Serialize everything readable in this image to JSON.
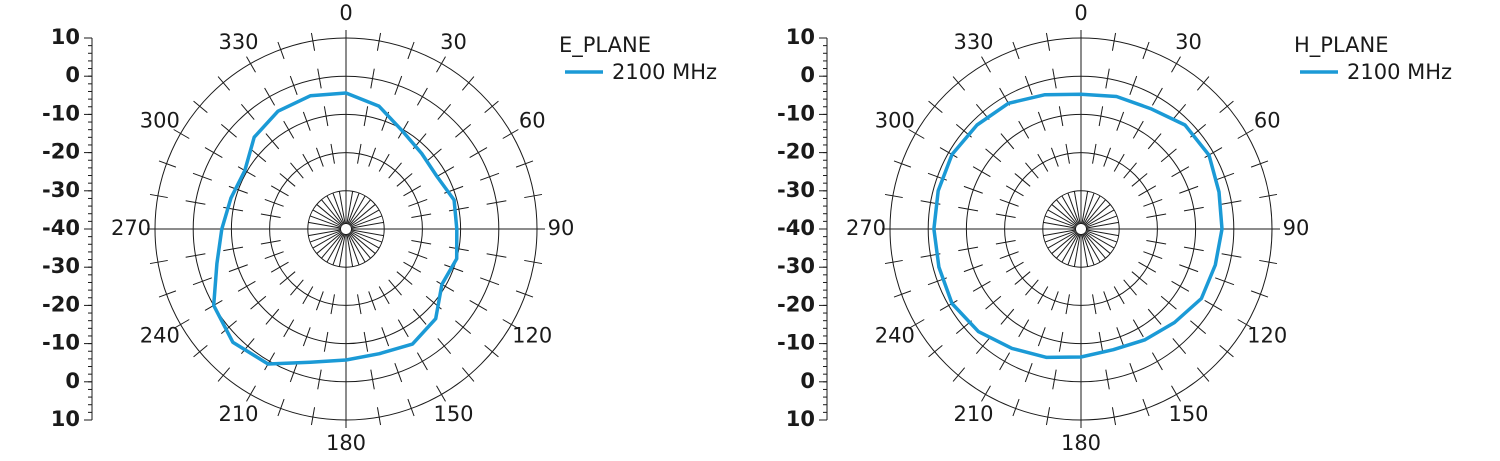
{
  "chart_data": [
    {
      "type": "polar",
      "legend_title": "E_PLANE",
      "theta": [
        0,
        15,
        30,
        45,
        60,
        75,
        90,
        105,
        120,
        135,
        150,
        165,
        180,
        195,
        210,
        225,
        240,
        255,
        270,
        285,
        300,
        315,
        330,
        345
      ],
      "thetaticks": [
        0,
        30,
        60,
        90,
        120,
        150,
        180,
        210,
        240,
        270,
        300,
        330
      ],
      "rlim": [
        -40,
        10
      ],
      "rticks": [
        -40,
        -30,
        -20,
        -10,
        0,
        10
      ],
      "series": [
        {
          "name": "2100 MHz",
          "color": "#1b9ad6",
          "values": [
            -4.4,
            -6.7,
            -10.4,
            -12,
            -12.5,
            -10.7,
            -11,
            -10,
            -11,
            -6.8,
            -5.2,
            -6.2,
            -5.7,
            -3.9,
            0.8,
            1.9,
            0,
            -5,
            -7.5,
            -8.8,
            -9.4,
            -6,
            -4.4,
            -3.9
          ]
        }
      ]
    },
    {
      "type": "polar",
      "legend_title": "H_PLANE",
      "theta": [
        0,
        15,
        30,
        45,
        60,
        75,
        90,
        105,
        120,
        135,
        150,
        165,
        180,
        195,
        210,
        225,
        240,
        255,
        270,
        285,
        300,
        315,
        330,
        345
      ],
      "thetaticks": [
        0,
        30,
        60,
        90,
        120,
        150,
        180,
        210,
        240,
        270,
        300,
        330
      ],
      "rlim": [
        -40,
        10
      ],
      "rticks": [
        -40,
        -30,
        -20,
        -10,
        0,
        10
      ],
      "series": [
        {
          "name": "2100 MHz",
          "color": "#1b9ad6",
          "values": [
            -4.7,
            -4.1,
            -3.6,
            -1.5,
            -1.3,
            -2.6,
            -3.1,
            -3.6,
            -3.6,
            -5.4,
            -6.5,
            -7.3,
            -6.5,
            -5.2,
            -3.9,
            -2,
            -1,
            -1.5,
            -1.5,
            -1.3,
            -1,
            -1.5,
            -2,
            -3.6
          ]
        }
      ]
    }
  ]
}
